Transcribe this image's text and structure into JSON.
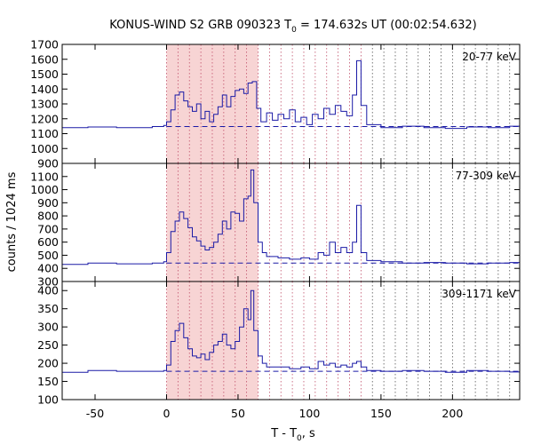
{
  "chart_data": {
    "type": "line",
    "title_main": "KONUS-WIND S2 GRB 090323 T",
    "title_sub": "0",
    "title_rest": " = 174.632s UT (00:02:54.632)",
    "xlabel_main": "T - T",
    "xlabel_sub": "0",
    "xlabel_rest": ", s",
    "ylabel": "counts / 1024 ms",
    "xlim": [
      -73,
      247
    ],
    "xticks": [
      -50,
      0,
      50,
      100,
      150,
      200
    ],
    "xtick_labels": [
      "-50",
      "0",
      "50",
      "100",
      "150",
      "200"
    ],
    "highlight_interval": [
      0,
      64
    ],
    "spectral_interval_boundaries": [
      0,
      8,
      16,
      24,
      32,
      40,
      48,
      56,
      64,
      72,
      80,
      88,
      96,
      104,
      112,
      120,
      128,
      136,
      144,
      152,
      160,
      168,
      176,
      184,
      192,
      200,
      208,
      216,
      224,
      232,
      240
    ],
    "colors": {
      "series": "#1a1aa6",
      "highlight": "#f7d4d4",
      "dotted": "#c0506a",
      "dotted_dark": "#555555",
      "axes": "#000000"
    },
    "panels": [
      {
        "band": "20-77 keV",
        "ylim": [
          900,
          1700
        ],
        "yticks": [
          900,
          1000,
          1100,
          1200,
          1300,
          1400,
          1500,
          1600,
          1700
        ],
        "ytick_labels": [
          "900",
          "1000",
          "1100",
          "1200",
          "1300",
          "1400",
          "1500",
          "1600",
          "1700"
        ],
        "background": 1148,
        "points": [
          [
            -73,
            1140
          ],
          [
            -55,
            1145
          ],
          [
            -35,
            1140
          ],
          [
            -10,
            1148
          ],
          [
            -2,
            1155
          ],
          [
            0,
            1180
          ],
          [
            3,
            1260
          ],
          [
            6,
            1360
          ],
          [
            9,
            1380
          ],
          [
            12,
            1320
          ],
          [
            15,
            1280
          ],
          [
            18,
            1250
          ],
          [
            21,
            1300
          ],
          [
            24,
            1200
          ],
          [
            27,
            1250
          ],
          [
            30,
            1180
          ],
          [
            33,
            1230
          ],
          [
            36,
            1280
          ],
          [
            39,
            1360
          ],
          [
            42,
            1280
          ],
          [
            45,
            1350
          ],
          [
            48,
            1390
          ],
          [
            51,
            1400
          ],
          [
            54,
            1370
          ],
          [
            57,
            1440
          ],
          [
            60,
            1450
          ],
          [
            63,
            1270
          ],
          [
            66,
            1180
          ],
          [
            70,
            1240
          ],
          [
            74,
            1190
          ],
          [
            78,
            1230
          ],
          [
            82,
            1200
          ],
          [
            86,
            1260
          ],
          [
            90,
            1180
          ],
          [
            94,
            1210
          ],
          [
            98,
            1160
          ],
          [
            102,
            1230
          ],
          [
            106,
            1200
          ],
          [
            110,
            1270
          ],
          [
            114,
            1230
          ],
          [
            118,
            1290
          ],
          [
            122,
            1250
          ],
          [
            126,
            1220
          ],
          [
            130,
            1360
          ],
          [
            133,
            1590
          ],
          [
            136,
            1290
          ],
          [
            140,
            1160
          ],
          [
            150,
            1140
          ],
          [
            165,
            1150
          ],
          [
            180,
            1140
          ],
          [
            195,
            1135
          ],
          [
            210,
            1145
          ],
          [
            225,
            1140
          ],
          [
            240,
            1150
          ],
          [
            247,
            1145
          ]
        ]
      },
      {
        "band": "77-309 keV",
        "ylim": [
          300,
          1200
        ],
        "yticks": [
          300,
          400,
          500,
          600,
          700,
          800,
          900,
          1000,
          1100
        ],
        "ytick_labels": [
          "300",
          "400",
          "500",
          "600",
          "700",
          "800",
          "900",
          "1000",
          "1100"
        ],
        "background": 440,
        "points": [
          [
            -73,
            430
          ],
          [
            -55,
            440
          ],
          [
            -35,
            435
          ],
          [
            -10,
            440
          ],
          [
            -2,
            450
          ],
          [
            0,
            520
          ],
          [
            3,
            680
          ],
          [
            6,
            760
          ],
          [
            9,
            830
          ],
          [
            12,
            780
          ],
          [
            15,
            710
          ],
          [
            18,
            640
          ],
          [
            21,
            610
          ],
          [
            24,
            570
          ],
          [
            27,
            540
          ],
          [
            30,
            560
          ],
          [
            33,
            600
          ],
          [
            36,
            660
          ],
          [
            39,
            760
          ],
          [
            42,
            700
          ],
          [
            45,
            830
          ],
          [
            48,
            820
          ],
          [
            51,
            760
          ],
          [
            54,
            930
          ],
          [
            57,
            950
          ],
          [
            59,
            1150
          ],
          [
            61,
            900
          ],
          [
            64,
            600
          ],
          [
            67,
            520
          ],
          [
            70,
            490
          ],
          [
            78,
            480
          ],
          [
            86,
            470
          ],
          [
            94,
            480
          ],
          [
            100,
            470
          ],
          [
            106,
            520
          ],
          [
            110,
            500
          ],
          [
            114,
            600
          ],
          [
            118,
            520
          ],
          [
            122,
            560
          ],
          [
            126,
            520
          ],
          [
            130,
            600
          ],
          [
            133,
            880
          ],
          [
            136,
            520
          ],
          [
            140,
            460
          ],
          [
            150,
            450
          ],
          [
            165,
            440
          ],
          [
            180,
            445
          ],
          [
            195,
            440
          ],
          [
            210,
            435
          ],
          [
            225,
            440
          ],
          [
            240,
            445
          ],
          [
            247,
            440
          ]
        ]
      },
      {
        "band": "309-1171 keV",
        "ylim": [
          100,
          425
        ],
        "yticks": [
          100,
          150,
          200,
          250,
          300,
          350,
          400
        ],
        "ytick_labels": [
          "100",
          "150",
          "200",
          "250",
          "300",
          "350",
          "400"
        ],
        "background": 178,
        "points": [
          [
            -73,
            175
          ],
          [
            -55,
            180
          ],
          [
            -35,
            178
          ],
          [
            -10,
            178
          ],
          [
            -2,
            180
          ],
          [
            0,
            195
          ],
          [
            3,
            260
          ],
          [
            6,
            290
          ],
          [
            9,
            310
          ],
          [
            12,
            270
          ],
          [
            15,
            240
          ],
          [
            18,
            220
          ],
          [
            21,
            215
          ],
          [
            24,
            225
          ],
          [
            27,
            210
          ],
          [
            30,
            230
          ],
          [
            33,
            250
          ],
          [
            36,
            260
          ],
          [
            39,
            280
          ],
          [
            42,
            250
          ],
          [
            45,
            240
          ],
          [
            48,
            260
          ],
          [
            51,
            300
          ],
          [
            54,
            350
          ],
          [
            57,
            320
          ],
          [
            59,
            400
          ],
          [
            61,
            290
          ],
          [
            64,
            220
          ],
          [
            67,
            200
          ],
          [
            70,
            190
          ],
          [
            78,
            190
          ],
          [
            86,
            185
          ],
          [
            94,
            190
          ],
          [
            100,
            185
          ],
          [
            106,
            205
          ],
          [
            110,
            195
          ],
          [
            114,
            200
          ],
          [
            118,
            190
          ],
          [
            122,
            195
          ],
          [
            126,
            190
          ],
          [
            130,
            200
          ],
          [
            133,
            205
          ],
          [
            136,
            190
          ],
          [
            140,
            180
          ],
          [
            150,
            178
          ],
          [
            165,
            180
          ],
          [
            180,
            178
          ],
          [
            195,
            175
          ],
          [
            210,
            180
          ],
          [
            225,
            178
          ],
          [
            240,
            176
          ],
          [
            247,
            178
          ]
        ]
      }
    ]
  }
}
